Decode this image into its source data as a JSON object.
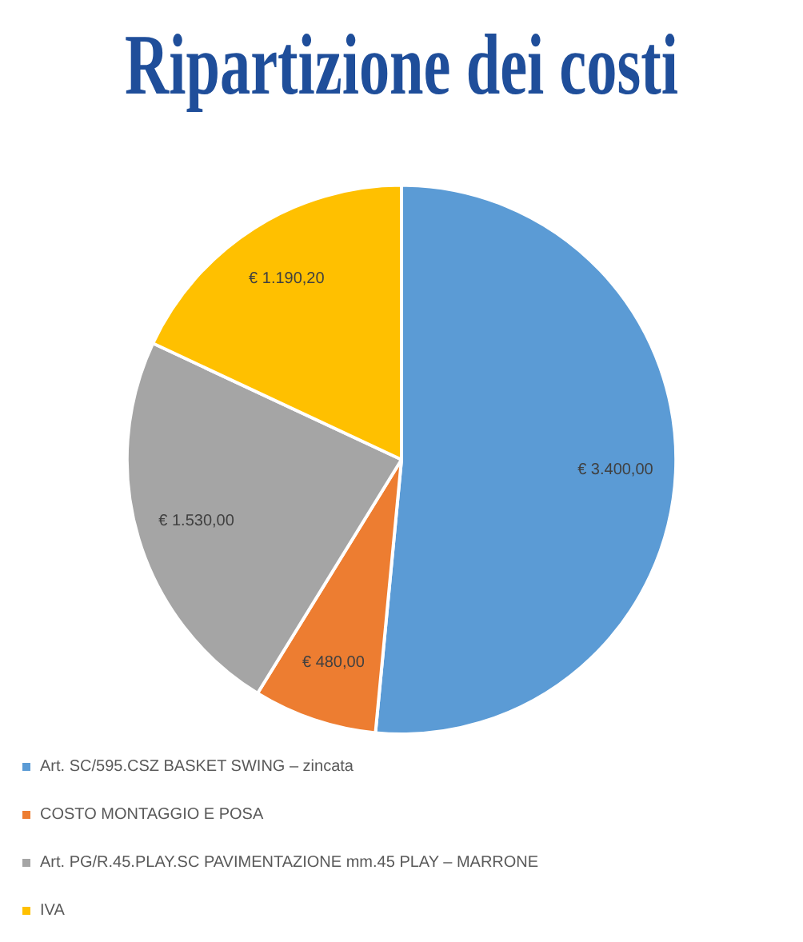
{
  "chart_data": {
    "type": "pie",
    "title": "Ripartizione dei costi",
    "categories": [
      "Art. SC/595.CSZ BASKET SWING – zincata",
      "COSTO MONTAGGIO E POSA",
      "Art. PG/R.45.PLAY.SC PAVIMENTAZIONE mm.45 PLAY – MARRONE",
      "IVA"
    ],
    "values": [
      3400,
      480,
      1530,
      1190.2
    ],
    "colors": [
      "#5b9bd5",
      "#ed7d31",
      "#a5a5a5",
      "#ffc000"
    ],
    "value_labels": [
      "€ 3.400,00",
      "€ 480,00",
      "€ 1.530,00",
      "€ 1.190,20"
    ],
    "legend": "bottom"
  }
}
